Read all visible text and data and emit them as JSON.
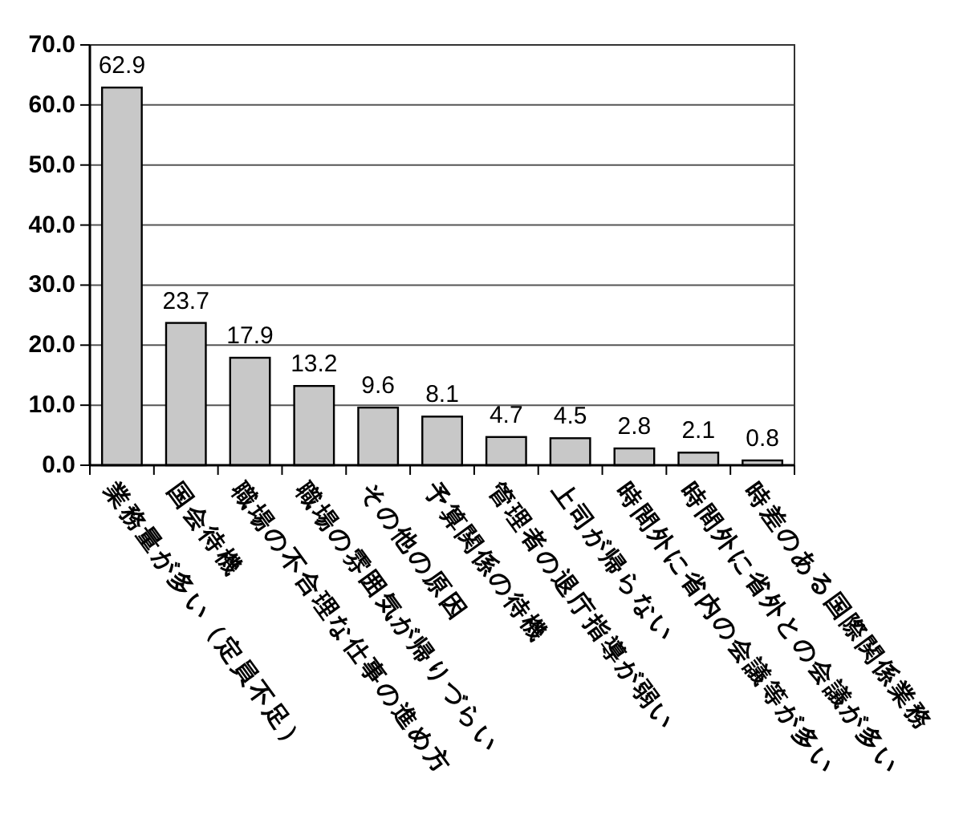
{
  "chart_data": {
    "type": "bar",
    "categories": [
      "業務量が多い（定員不足）",
      "国会待機",
      "職場の不合理な仕事の進め方",
      "職場の雰囲気が帰りづらい",
      "その他の原因",
      "予算関係の待機",
      "管理者の退庁指導が弱い",
      "上司が帰らない",
      "時間外に省内の会議等が多い",
      "時間外に省外との会議が多い",
      "時差のある国際関係業務"
    ],
    "values": [
      62.9,
      23.7,
      17.9,
      13.2,
      9.6,
      8.1,
      4.7,
      4.5,
      2.8,
      2.1,
      0.8
    ],
    "color": "#c8c8c8",
    "ylim": [
      0,
      70
    ],
    "yticks": [
      {
        "value": 0,
        "label": "0.0"
      },
      {
        "value": 10,
        "label": "10.0"
      },
      {
        "value": 20,
        "label": "20.0"
      },
      {
        "value": 30,
        "label": "30.0"
      },
      {
        "value": 40,
        "label": "40.0"
      },
      {
        "value": 50,
        "label": "50.0"
      },
      {
        "value": 60,
        "label": "60.0"
      },
      {
        "value": 70,
        "label": "70.0"
      }
    ],
    "grid": "y",
    "data_labels": true
  }
}
